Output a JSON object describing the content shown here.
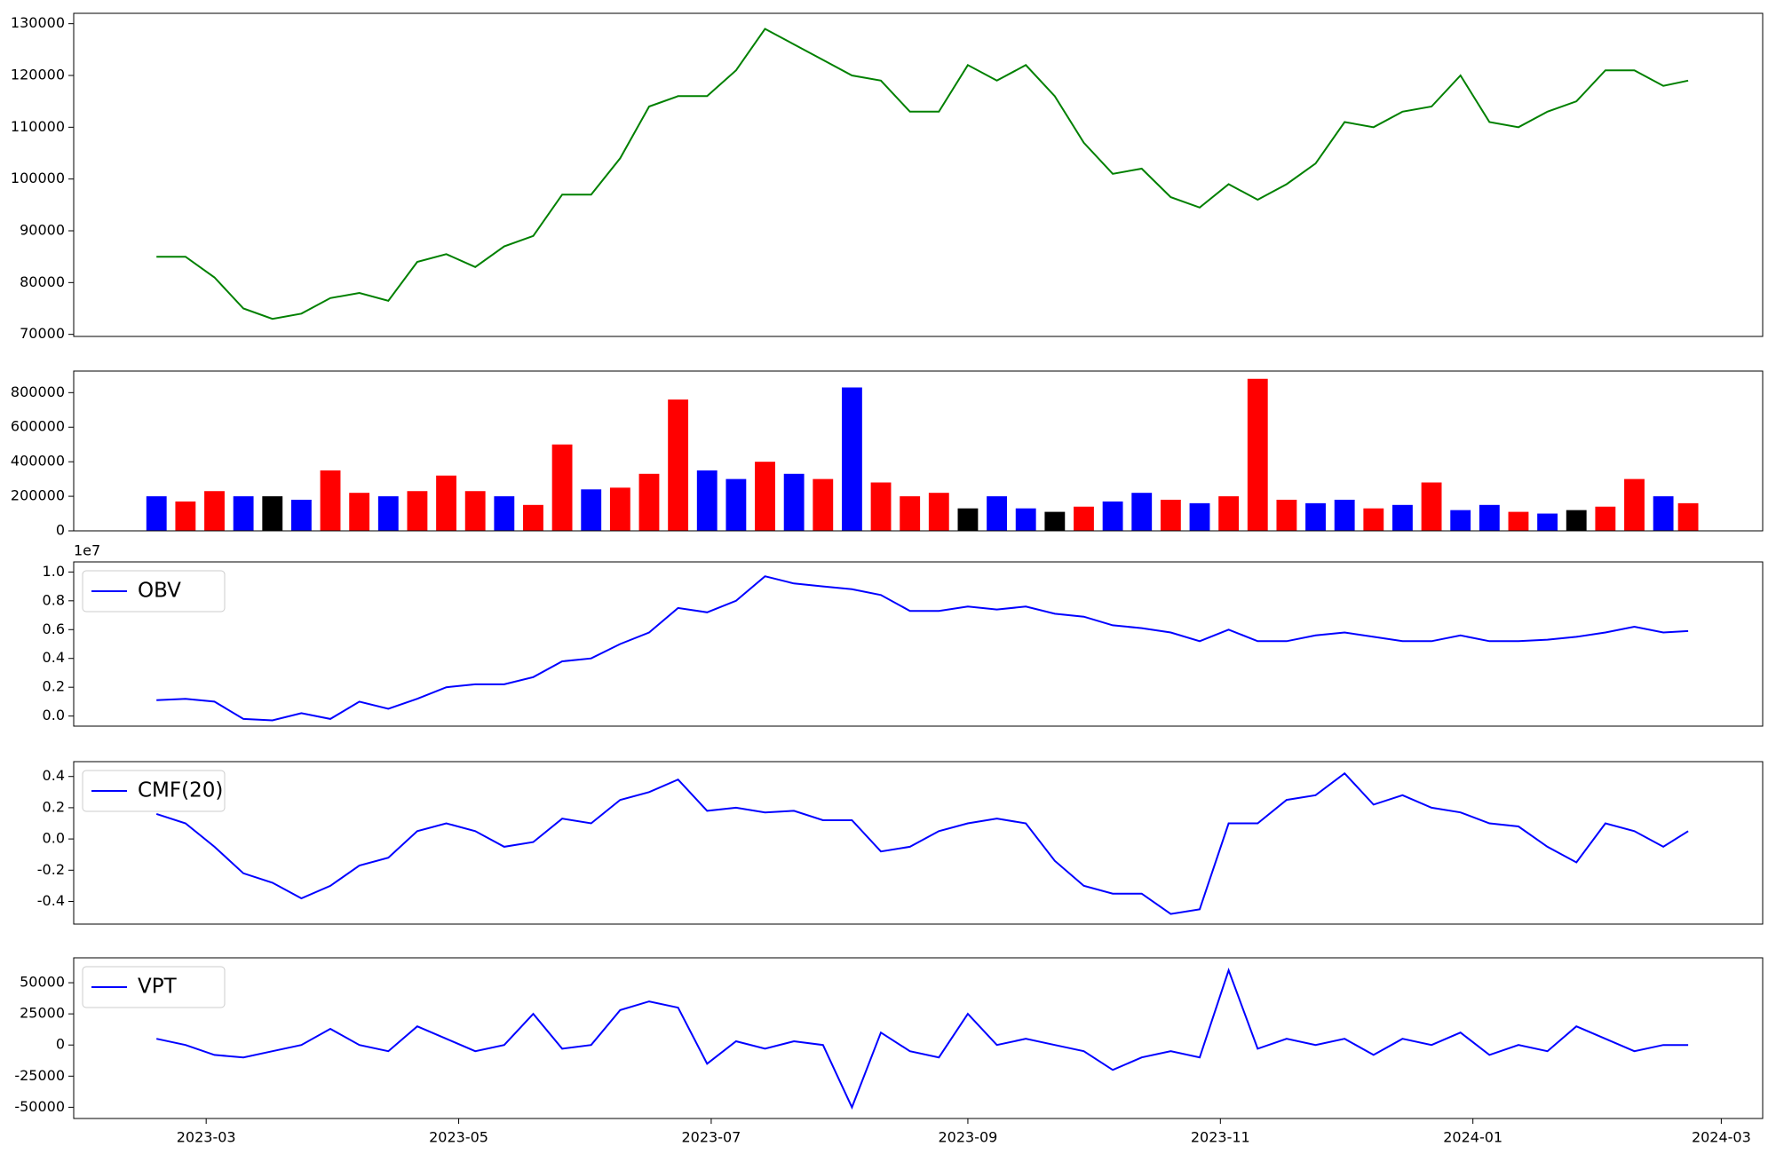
{
  "chart_data": [
    {
      "type": "line",
      "color": "green",
      "values": [
        85000,
        85000,
        81000,
        75000,
        73000,
        74000,
        77000,
        78000,
        76500,
        84000,
        85500,
        83000,
        87000,
        89000,
        97000,
        97000,
        104000,
        114000,
        116000,
        116000,
        121000,
        129000,
        126000,
        123000,
        120000,
        119000,
        113000,
        113000,
        122000,
        119000,
        122000,
        116000,
        107000,
        101000,
        102000,
        96500,
        94500,
        99000,
        96000,
        99000,
        103000,
        111000,
        110000,
        113000,
        114000,
        120000,
        111000,
        110000,
        113000,
        115000,
        121000,
        121000,
        118000,
        119000
      ],
      "ylim": [
        69600,
        132000
      ],
      "yticks": [
        70000,
        80000,
        90000,
        100000,
        110000,
        120000,
        130000
      ]
    },
    {
      "type": "bar",
      "values": [
        200000,
        170000,
        230000,
        200000,
        200000,
        180000,
        350000,
        220000,
        200000,
        230000,
        320000,
        230000,
        200000,
        150000,
        500000,
        240000,
        250000,
        330000,
        760000,
        350000,
        300000,
        400000,
        330000,
        300000,
        830000,
        280000,
        200000,
        220000,
        130000,
        200000,
        130000,
        110000,
        140000,
        170000,
        220000,
        180000,
        160000,
        200000,
        880000,
        180000,
        160000,
        180000,
        130000,
        150000,
        280000,
        120000,
        150000,
        110000,
        100000,
        120000,
        140000,
        300000,
        200000,
        160000
      ],
      "colors": [
        "blue",
        "red",
        "red",
        "blue",
        "black",
        "blue",
        "red",
        "red",
        "blue",
        "red",
        "red",
        "red",
        "blue",
        "red",
        "red",
        "blue",
        "red",
        "red",
        "red",
        "blue",
        "blue",
        "red",
        "blue",
        "red",
        "blue",
        "red",
        "red",
        "red",
        "black",
        "blue",
        "blue",
        "black",
        "red",
        "blue",
        "blue",
        "red",
        "blue",
        "red",
        "red",
        "red",
        "blue",
        "blue",
        "red",
        "blue",
        "red",
        "blue",
        "blue",
        "red",
        "blue",
        "black",
        "red",
        "red",
        "blue",
        "red"
      ],
      "ylim": [
        0,
        925000
      ],
      "yticks": [
        0,
        200000,
        400000,
        600000,
        800000
      ]
    },
    {
      "type": "line",
      "y_offset_text": "1e7",
      "legend": "upper left",
      "series": [
        {
          "name": "OBV",
          "color": "blue",
          "values": [
            0.11,
            0.12,
            0.1,
            -0.02,
            -0.03,
            0.02,
            -0.02,
            0.1,
            0.05,
            0.12,
            0.2,
            0.22,
            0.22,
            0.27,
            0.38,
            0.4,
            0.5,
            0.58,
            0.75,
            0.72,
            0.8,
            0.97,
            0.92,
            0.9,
            0.88,
            0.84,
            0.73,
            0.73,
            0.76,
            0.74,
            0.76,
            0.71,
            0.69,
            0.63,
            0.61,
            0.58,
            0.52,
            0.6,
            0.52,
            0.52,
            0.56,
            0.58,
            0.55,
            0.52,
            0.52,
            0.56,
            0.52,
            0.52,
            0.53,
            0.55,
            0.58,
            0.62,
            0.58,
            0.59
          ]
        }
      ],
      "ylim": [
        -0.07,
        1.07
      ],
      "yticks": [
        {
          "value": 0,
          "label": "0.0"
        },
        0.2,
        0.4,
        0.6,
        0.8,
        {
          "value": 1,
          "label": "1.0"
        }
      ]
    },
    {
      "type": "line",
      "legend": "upper left",
      "series": [
        {
          "name": "CMF(20)",
          "color": "blue",
          "values": [
            0.16,
            0.1,
            -0.05,
            -0.22,
            -0.28,
            -0.38,
            -0.3,
            -0.17,
            -0.12,
            0.05,
            0.1,
            0.05,
            -0.05,
            -0.02,
            0.13,
            0.1,
            0.25,
            0.3,
            0.38,
            0.18,
            0.2,
            0.17,
            0.18,
            0.12,
            0.12,
            -0.08,
            -0.05,
            0.05,
            0.1,
            0.13,
            0.1,
            -0.14,
            -0.3,
            -0.35,
            -0.35,
            -0.48,
            -0.45,
            0.1,
            0.1,
            0.25,
            0.28,
            0.42,
            0.22,
            0.28,
            0.2,
            0.17,
            0.1,
            0.08,
            -0.05,
            -0.15,
            0.1,
            0.05,
            -0.05,
            0.05
          ]
        }
      ],
      "ylim": [
        -0.545,
        0.495
      ],
      "yticks": [
        -0.4,
        -0.2,
        {
          "value": 0,
          "label": "0.0"
        },
        0.2,
        0.4
      ]
    },
    {
      "type": "line",
      "legend": "upper left",
      "x": [
        "2023-02-17",
        "2023-02-24",
        "2023-03-03",
        "2023-03-10",
        "2023-03-17",
        "2023-03-24",
        "2023-03-31",
        "2023-04-07",
        "2023-04-14",
        "2023-04-21",
        "2023-04-28",
        "2023-05-05",
        "2023-05-12",
        "2023-05-19",
        "2023-05-26",
        "2023-06-02",
        "2023-06-09",
        "2023-06-16",
        "2023-06-23",
        "2023-06-30",
        "2023-07-07",
        "2023-07-14",
        "2023-07-21",
        "2023-07-28",
        "2023-08-04",
        "2023-08-11",
        "2023-08-18",
        "2023-08-25",
        "2023-09-01",
        "2023-09-08",
        "2023-09-15",
        "2023-09-22",
        "2023-09-29",
        "2023-10-06",
        "2023-10-13",
        "2023-10-20",
        "2023-10-27",
        "2023-11-03",
        "2023-11-10",
        "2023-11-17",
        "2023-11-24",
        "2023-12-01",
        "2023-12-08",
        "2023-12-15",
        "2023-12-22",
        "2023-12-29",
        "2024-01-05",
        "2024-01-12",
        "2024-01-19",
        "2024-01-26",
        "2024-02-02",
        "2024-02-09",
        "2024-02-16",
        "2024-02-22"
      ],
      "xlim": [
        "2023-01-28",
        "2024-03-11"
      ],
      "xticks": [
        {
          "value": "2023-03-01",
          "label": "2023-03"
        },
        {
          "value": "2023-05-01",
          "label": "2023-05"
        },
        {
          "value": "2023-07-01",
          "label": "2023-07"
        },
        {
          "value": "2023-09-01",
          "label": "2023-09"
        },
        {
          "value": "2023-11-01",
          "label": "2023-11"
        },
        {
          "value": "2024-01-01",
          "label": "2024-01"
        },
        {
          "value": "2024-03-01",
          "label": "2024-03"
        }
      ],
      "series": [
        {
          "name": "VPT",
          "color": "blue",
          "values": [
            5000,
            0,
            -8000,
            -10000,
            -5000,
            0,
            13000,
            0,
            -5000,
            15000,
            5000,
            -5000,
            0,
            25000,
            -3000,
            0,
            28000,
            35000,
            30000,
            -15000,
            3000,
            -3000,
            3000,
            0,
            -50000,
            10000,
            -5000,
            -10000,
            25000,
            0,
            5000,
            0,
            -5000,
            -20000,
            -10000,
            -5000,
            -10000,
            60000,
            -3000,
            5000,
            0,
            5000,
            -8000,
            5000,
            0,
            10000,
            -8000,
            0,
            -5000,
            15000,
            5000,
            -5000,
            0,
            0
          ]
        }
      ],
      "ylim": [
        -59000,
        70000
      ],
      "yticks": [
        -50000,
        -25000,
        0,
        25000,
        50000
      ]
    }
  ]
}
